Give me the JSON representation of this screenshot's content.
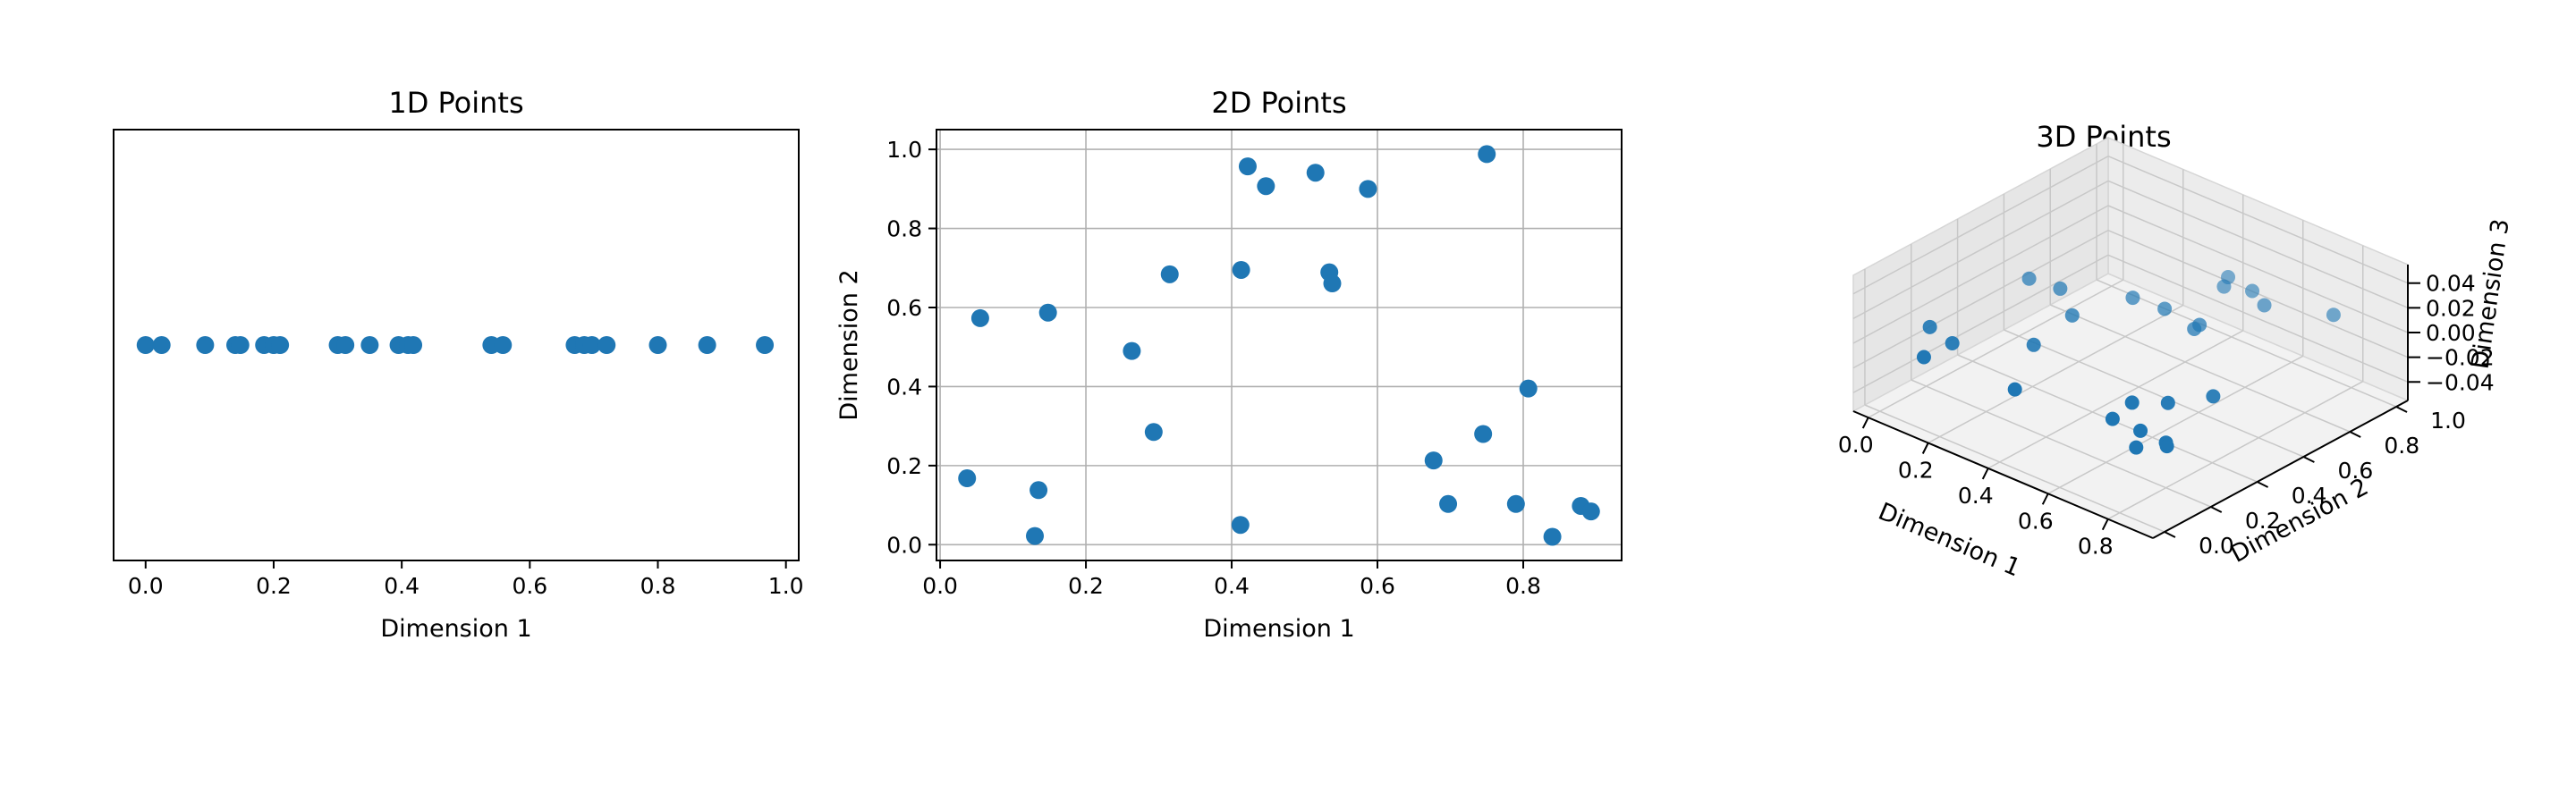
{
  "chart_data": [
    {
      "type": "scatter",
      "title": "1D Points",
      "xlabel": "Dimension 1",
      "ylabel": "",
      "xlim": [
        -0.05,
        1.02
      ],
      "xticks": [
        "0.0",
        "0.2",
        "0.4",
        "0.6",
        "0.8",
        "1.0"
      ],
      "grid": false,
      "x": [
        0.0,
        0.025,
        0.093,
        0.14,
        0.148,
        0.185,
        0.2,
        0.21,
        0.3,
        0.312,
        0.35,
        0.395,
        0.41,
        0.418,
        0.54,
        0.558,
        0.67,
        0.685,
        0.697,
        0.72,
        0.8,
        0.877,
        0.967
      ]
    },
    {
      "type": "scatter",
      "title": "2D Points",
      "xlabel": "Dimension 1",
      "ylabel": "Dimension 2",
      "xlim": [
        -0.005,
        0.935
      ],
      "ylim": [
        -0.04,
        1.05
      ],
      "xticks": [
        "0.0",
        "0.2",
        "0.4",
        "0.6",
        "0.8"
      ],
      "yticks": [
        "0.0",
        "0.2",
        "0.4",
        "0.6",
        "0.8",
        "1.0"
      ],
      "grid": true,
      "points": [
        [
          0.037,
          0.168
        ],
        [
          0.055,
          0.573
        ],
        [
          0.13,
          0.022
        ],
        [
          0.135,
          0.138
        ],
        [
          0.148,
          0.587
        ],
        [
          0.263,
          0.49
        ],
        [
          0.293,
          0.285
        ],
        [
          0.315,
          0.684
        ],
        [
          0.412,
          0.05
        ],
        [
          0.413,
          0.695
        ],
        [
          0.422,
          0.957
        ],
        [
          0.447,
          0.907
        ],
        [
          0.515,
          0.941
        ],
        [
          0.534,
          0.689
        ],
        [
          0.538,
          0.661
        ],
        [
          0.587,
          0.9
        ],
        [
          0.677,
          0.213
        ],
        [
          0.697,
          0.103
        ],
        [
          0.745,
          0.28
        ],
        [
          0.75,
          0.988
        ],
        [
          0.79,
          0.103
        ],
        [
          0.807,
          0.395
        ],
        [
          0.84,
          0.02
        ],
        [
          0.879,
          0.098
        ],
        [
          0.893,
          0.084
        ]
      ]
    },
    {
      "type": "scatter3d",
      "title": "3D Points",
      "xlabel": "Dimension 1",
      "ylabel": "Dimension 2",
      "zlabel": "Dimension 3",
      "xlim": [
        -0.05,
        0.95
      ],
      "ylim": [
        -0.05,
        1.05
      ],
      "zlim": [
        -0.055,
        0.055
      ],
      "xticks": [
        "0.0",
        "0.2",
        "0.4",
        "0.6",
        "0.8"
      ],
      "yticks": [
        "0.0",
        "0.2",
        "0.4",
        "0.6",
        "0.8",
        "1.0"
      ],
      "zticks": [
        "−0.04",
        "−0.02",
        "0.00",
        "0.02",
        "0.04"
      ],
      "grid": true,
      "points": [
        [
          0.037,
          0.168,
          0
        ],
        [
          0.055,
          0.573,
          0
        ],
        [
          0.13,
          0.022,
          0
        ],
        [
          0.135,
          0.138,
          0
        ],
        [
          0.148,
          0.587,
          0
        ],
        [
          0.263,
          0.49,
          0
        ],
        [
          0.293,
          0.285,
          0
        ],
        [
          0.315,
          0.684,
          0
        ],
        [
          0.412,
          0.05,
          0
        ],
        [
          0.413,
          0.695,
          0
        ],
        [
          0.422,
          0.957,
          0
        ],
        [
          0.447,
          0.907,
          0
        ],
        [
          0.515,
          0.941,
          0
        ],
        [
          0.534,
          0.689,
          0
        ],
        [
          0.538,
          0.661,
          0
        ],
        [
          0.587,
          0.9,
          0
        ],
        [
          0.677,
          0.213,
          0
        ],
        [
          0.697,
          0.103,
          0
        ],
        [
          0.745,
          0.28,
          0
        ],
        [
          0.75,
          0.988,
          0
        ],
        [
          0.79,
          0.103,
          0
        ],
        [
          0.807,
          0.395,
          0
        ],
        [
          0.84,
          0.02,
          0
        ],
        [
          0.879,
          0.098,
          0
        ],
        [
          0.893,
          0.084,
          0
        ]
      ]
    }
  ],
  "colors": {
    "marker": "#1f77b4"
  }
}
